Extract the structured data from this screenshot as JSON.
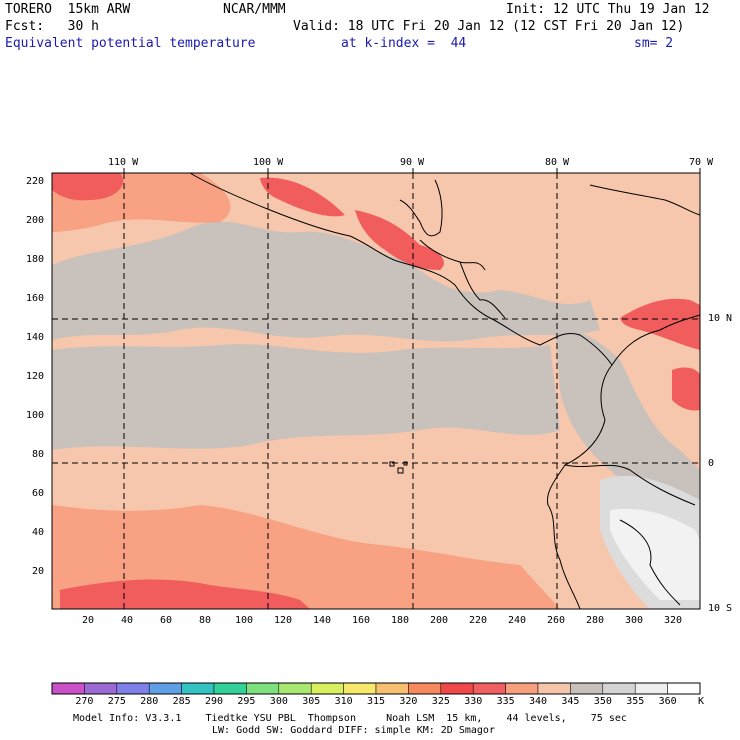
{
  "header": {
    "model_left": "TORERO  15km ARW",
    "center_org": "NCAR/MMM",
    "init": "Init: 12 UTC Thu 19 Jan 12",
    "fcst": "Fcst:   30 h",
    "valid": "Valid: 18 UTC Fri 20 Jan 12 (12 CST Fri 20 Jan 12)",
    "field": "Equivalent potential temperature",
    "level": "at k-index =  44",
    "smoothing": "sm= 2"
  },
  "map": {
    "top_lon_labels": [
      "110 W",
      "100 W",
      "90 W",
      "80 W",
      "70 W"
    ],
    "right_lat_labels": [
      "10 N",
      "0",
      "10 S"
    ],
    "y_ticks": [
      "220",
      "200",
      "180",
      "160",
      "140",
      "120",
      "100",
      "80",
      "60",
      "40",
      "20"
    ],
    "x_ticks": [
      "20",
      "40",
      "60",
      "80",
      "100",
      "120",
      "140",
      "160",
      "180",
      "200",
      "220",
      "240",
      "260",
      "280",
      "300",
      "320"
    ],
    "colors": {
      "land": "#f6c7ac",
      "cool": "#c9c1bc",
      "mid": "#f6c7ac",
      "warm": "#f8a183",
      "hot": "#f15c5c",
      "very_cool": "#dcdcdc",
      "coldest": "#f2f2f2"
    }
  },
  "colorbar": {
    "labels": [
      "270",
      "275",
      "280",
      "285",
      "290",
      "295",
      "300",
      "305",
      "310",
      "315",
      "320",
      "325",
      "330",
      "335",
      "340",
      "345",
      "350",
      "355",
      "360"
    ],
    "unit": "K",
    "colors": [
      "#c851c8",
      "#9b6bd4",
      "#7f7fe8",
      "#5f9fe6",
      "#35c2c2",
      "#33d29a",
      "#7ee07e",
      "#a8e870",
      "#d8ef60",
      "#f6e86a",
      "#f6c070",
      "#f68a5e",
      "#f04848",
      "#f06060",
      "#f6a07e",
      "#f6c4aa",
      "#c8c0bb",
      "#d4d4d4",
      "#eeeeee",
      "#ffffff"
    ]
  },
  "footer": {
    "line1": "Model Info: V3.3.1    Tiedtke YSU PBL  Thompson     Noah LSM  15 km,    44 levels,    75 sec",
    "line2": "LW: Godd SW: Goddard DIFF: simple KM: 2D Smagor"
  }
}
